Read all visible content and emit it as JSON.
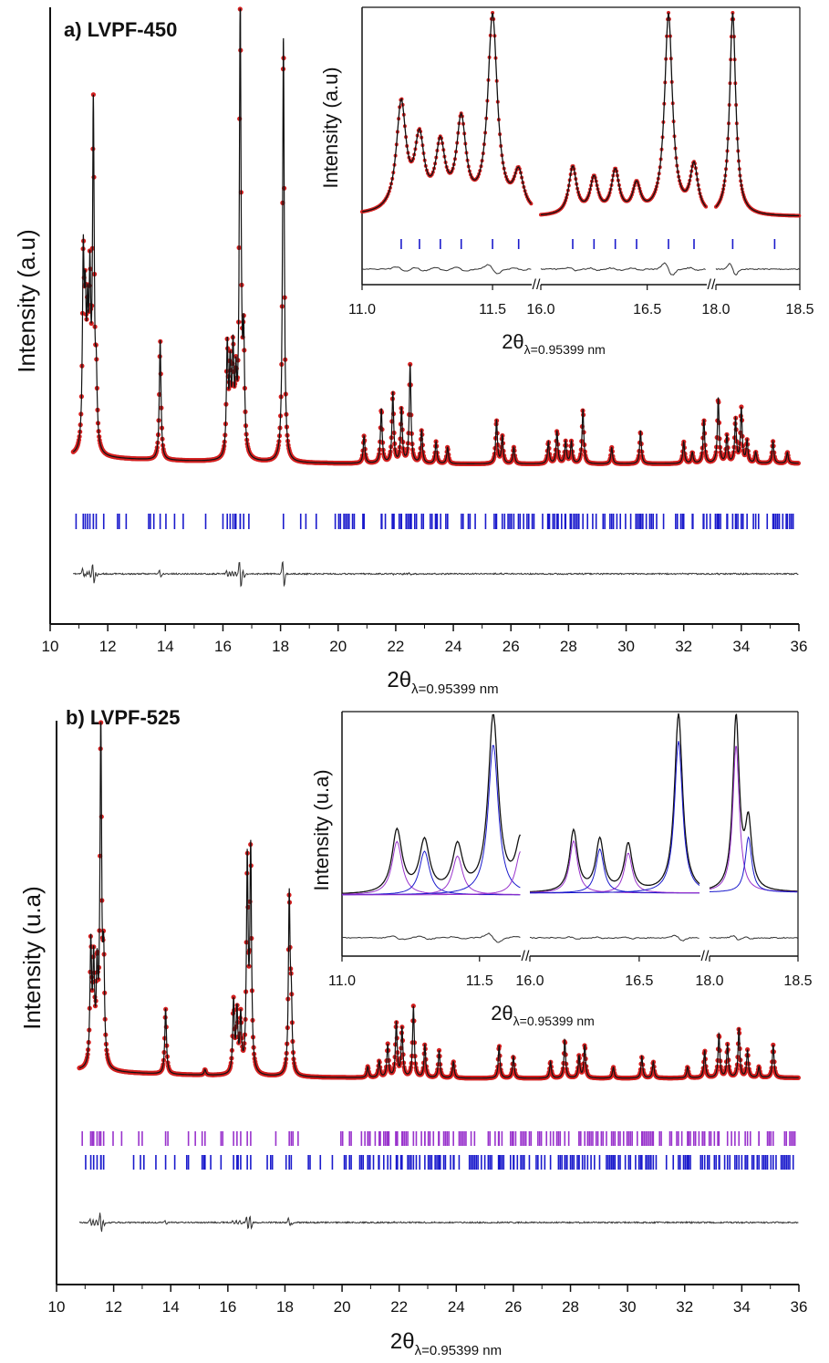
{
  "chart_data": [
    {
      "id": "a",
      "type": "line",
      "title": "a) LVPF-450",
      "xlabel": "2θ",
      "xlabel_sub": "λ=0.95399 nm",
      "ylabel": "Intensity (a.u)",
      "xlim": [
        10,
        36
      ],
      "xticks": [
        10,
        12,
        14,
        16,
        18,
        20,
        22,
        24,
        26,
        28,
        30,
        32,
        34,
        36
      ],
      "series": [
        {
          "role": "observed",
          "color": "#d42020",
          "marker": "dot"
        },
        {
          "role": "calculated",
          "color": "#111111"
        },
        {
          "role": "bragg",
          "color": "#1a1acc"
        },
        {
          "role": "difference",
          "color": "#333333"
        }
      ],
      "peaks": [
        [
          11.15,
          0.34
        ],
        [
          11.22,
          0.22
        ],
        [
          11.3,
          0.2
        ],
        [
          11.38,
          0.28
        ],
        [
          11.5,
          0.62
        ],
        [
          11.6,
          0.12
        ],
        [
          13.82,
          0.22
        ],
        [
          16.15,
          0.2
        ],
        [
          16.25,
          0.15
        ],
        [
          16.35,
          0.18
        ],
        [
          16.45,
          0.12
        ],
        [
          16.6,
          0.84
        ],
        [
          16.72,
          0.2
        ],
        [
          18.1,
          0.78
        ],
        [
          20.9,
          0.05
        ],
        [
          21.5,
          0.1
        ],
        [
          21.9,
          0.13
        ],
        [
          22.2,
          0.1
        ],
        [
          22.5,
          0.18
        ],
        [
          22.9,
          0.06
        ],
        [
          23.4,
          0.04
        ],
        [
          23.8,
          0.03
        ],
        [
          25.5,
          0.08
        ],
        [
          25.7,
          0.05
        ],
        [
          26.1,
          0.03
        ],
        [
          27.3,
          0.04
        ],
        [
          27.6,
          0.06
        ],
        [
          27.9,
          0.04
        ],
        [
          28.1,
          0.04
        ],
        [
          28.5,
          0.1
        ],
        [
          29.5,
          0.03
        ],
        [
          30.5,
          0.06
        ],
        [
          32.0,
          0.04
        ],
        [
          32.3,
          0.02
        ],
        [
          32.7,
          0.08
        ],
        [
          33.2,
          0.12
        ],
        [
          33.5,
          0.05
        ],
        [
          33.8,
          0.08
        ],
        [
          34.0,
          0.1
        ],
        [
          34.2,
          0.04
        ],
        [
          34.5,
          0.02
        ],
        [
          35.1,
          0.04
        ],
        [
          35.6,
          0.02
        ]
      ],
      "inset": {
        "ylabel": "Intensity (a.u)",
        "xlabel": "2θ",
        "xlabel_sub": "λ=0.95399 nm",
        "segments": [
          {
            "range": [
              11.0,
              11.65
            ],
            "ticks": [
              11.0,
              11.5
            ]
          },
          {
            "range": [
              16.0,
              16.78
            ],
            "ticks": [
              16.0,
              16.5
            ]
          },
          {
            "range": [
              18.0,
              18.5
            ],
            "ticks": [
              18.0,
              18.5
            ]
          }
        ]
      }
    },
    {
      "id": "b",
      "type": "line",
      "title": "b) LVPF-525",
      "xlabel": "2θ",
      "xlabel_sub": "λ=0.95399 nm",
      "ylabel": "Intensity (u.a)",
      "xlim": [
        10,
        36
      ],
      "xticks": [
        10,
        12,
        14,
        16,
        18,
        20,
        22,
        24,
        26,
        28,
        30,
        32,
        34,
        36
      ],
      "series": [
        {
          "role": "observed",
          "color": "#d42020",
          "marker": "dot"
        },
        {
          "role": "calculated",
          "color": "#111111"
        },
        {
          "role": "bragg-phase-1",
          "color": "#9933cc"
        },
        {
          "role": "bragg-phase-2",
          "color": "#1a1acc"
        },
        {
          "role": "difference",
          "color": "#333333"
        }
      ],
      "peaks": [
        [
          11.2,
          0.22
        ],
        [
          11.3,
          0.18
        ],
        [
          11.42,
          0.16
        ],
        [
          11.55,
          0.62
        ],
        [
          11.65,
          0.18
        ],
        [
          13.82,
          0.12
        ],
        [
          15.2,
          0.01
        ],
        [
          16.2,
          0.13
        ],
        [
          16.32,
          0.11
        ],
        [
          16.45,
          0.1
        ],
        [
          16.68,
          0.38
        ],
        [
          16.8,
          0.4
        ],
        [
          18.15,
          0.32
        ],
        [
          18.22,
          0.12
        ],
        [
          20.9,
          0.02
        ],
        [
          21.3,
          0.03
        ],
        [
          21.6,
          0.06
        ],
        [
          21.9,
          0.1
        ],
        [
          22.1,
          0.09
        ],
        [
          22.5,
          0.13
        ],
        [
          22.9,
          0.06
        ],
        [
          23.4,
          0.05
        ],
        [
          23.9,
          0.03
        ],
        [
          25.5,
          0.06
        ],
        [
          26.0,
          0.04
        ],
        [
          27.3,
          0.03
        ],
        [
          27.8,
          0.07
        ],
        [
          28.3,
          0.04
        ],
        [
          28.5,
          0.06
        ],
        [
          29.5,
          0.02
        ],
        [
          30.5,
          0.04
        ],
        [
          30.9,
          0.03
        ],
        [
          32.1,
          0.02
        ],
        [
          32.7,
          0.05
        ],
        [
          33.2,
          0.08
        ],
        [
          33.5,
          0.06
        ],
        [
          33.9,
          0.09
        ],
        [
          34.2,
          0.05
        ],
        [
          34.6,
          0.02
        ],
        [
          35.1,
          0.06
        ]
      ],
      "inset": {
        "ylabel": "Intensity (u.a)",
        "xlabel": "2θ",
        "xlabel_sub": "λ=0.95399 nm",
        "segments": [
          {
            "range": [
              11.0,
              11.65
            ],
            "ticks": [
              11.0,
              11.5
            ]
          },
          {
            "range": [
              16.0,
              16.78
            ],
            "ticks": [
              16.0,
              16.5
            ]
          },
          {
            "range": [
              18.0,
              18.5
            ],
            "ticks": [
              18.0,
              18.5
            ]
          }
        ]
      }
    }
  ]
}
